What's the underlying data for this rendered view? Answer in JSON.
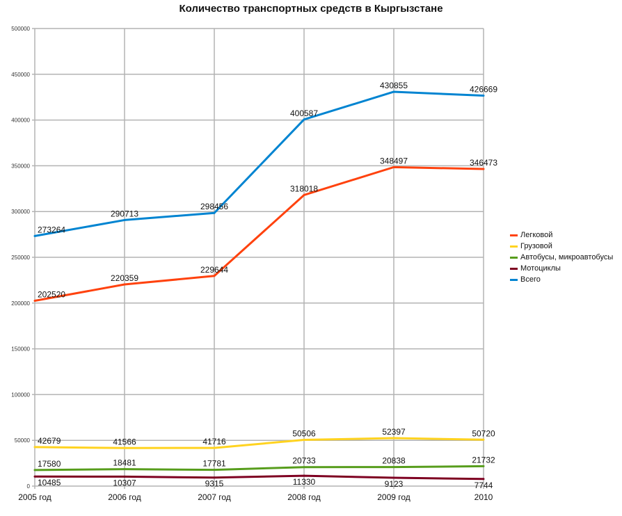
{
  "chart_data": {
    "type": "line",
    "title": "Количество транспортных средств в Кыргызстане",
    "categories": [
      "2005 год",
      "2006 год",
      "2007 год",
      "2008 год",
      "2009 год",
      "2010"
    ],
    "ylim": [
      0,
      500000
    ],
    "yticks": [
      0,
      50000,
      100000,
      150000,
      200000,
      250000,
      300000,
      350000,
      400000,
      450000,
      500000
    ],
    "grid": true,
    "legend_position": "right",
    "series": [
      {
        "name": "Легковой",
        "color": "#ff420e",
        "values": [
          202520,
          220359,
          229644,
          318018,
          348497,
          346473
        ]
      },
      {
        "name": "Грузовой",
        "color": "#ffd320",
        "values": [
          42679,
          41566,
          41716,
          50506,
          52397,
          50720
        ]
      },
      {
        "name": "Автобусы, микроавтобусы",
        "color": "#579d1c",
        "values": [
          17580,
          18481,
          17781,
          20733,
          20838,
          21732
        ]
      },
      {
        "name": "Мотоциклы",
        "color": "#7e0021",
        "values": [
          10485,
          10307,
          9315,
          11330,
          9123,
          7744
        ]
      },
      {
        "name": "Всего",
        "color": "#0084d1",
        "values": [
          273264,
          290713,
          298456,
          400587,
          430855,
          426669
        ]
      }
    ]
  }
}
